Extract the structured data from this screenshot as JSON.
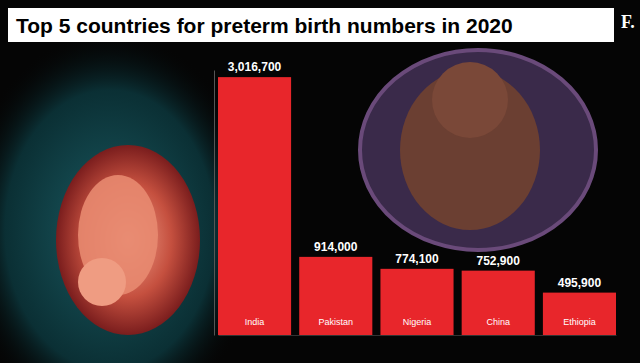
{
  "chart_data": {
    "type": "bar",
    "title": "Top 5 countries for preterm birth numbers in 2020",
    "categories": [
      "India",
      "Pakistan",
      "Nigeria",
      "China",
      "Ethiopia"
    ],
    "values": [
      3016700,
      914000,
      774100,
      752900,
      495900
    ],
    "value_labels": [
      "3,016,700",
      "914,000",
      "774,100",
      "752,900",
      "495,900"
    ],
    "color": "#e8262b",
    "ylim": [
      0,
      3100000
    ],
    "data_labels": true,
    "tick_labels": "x",
    "annotations": [
      "F."
    ]
  }
}
